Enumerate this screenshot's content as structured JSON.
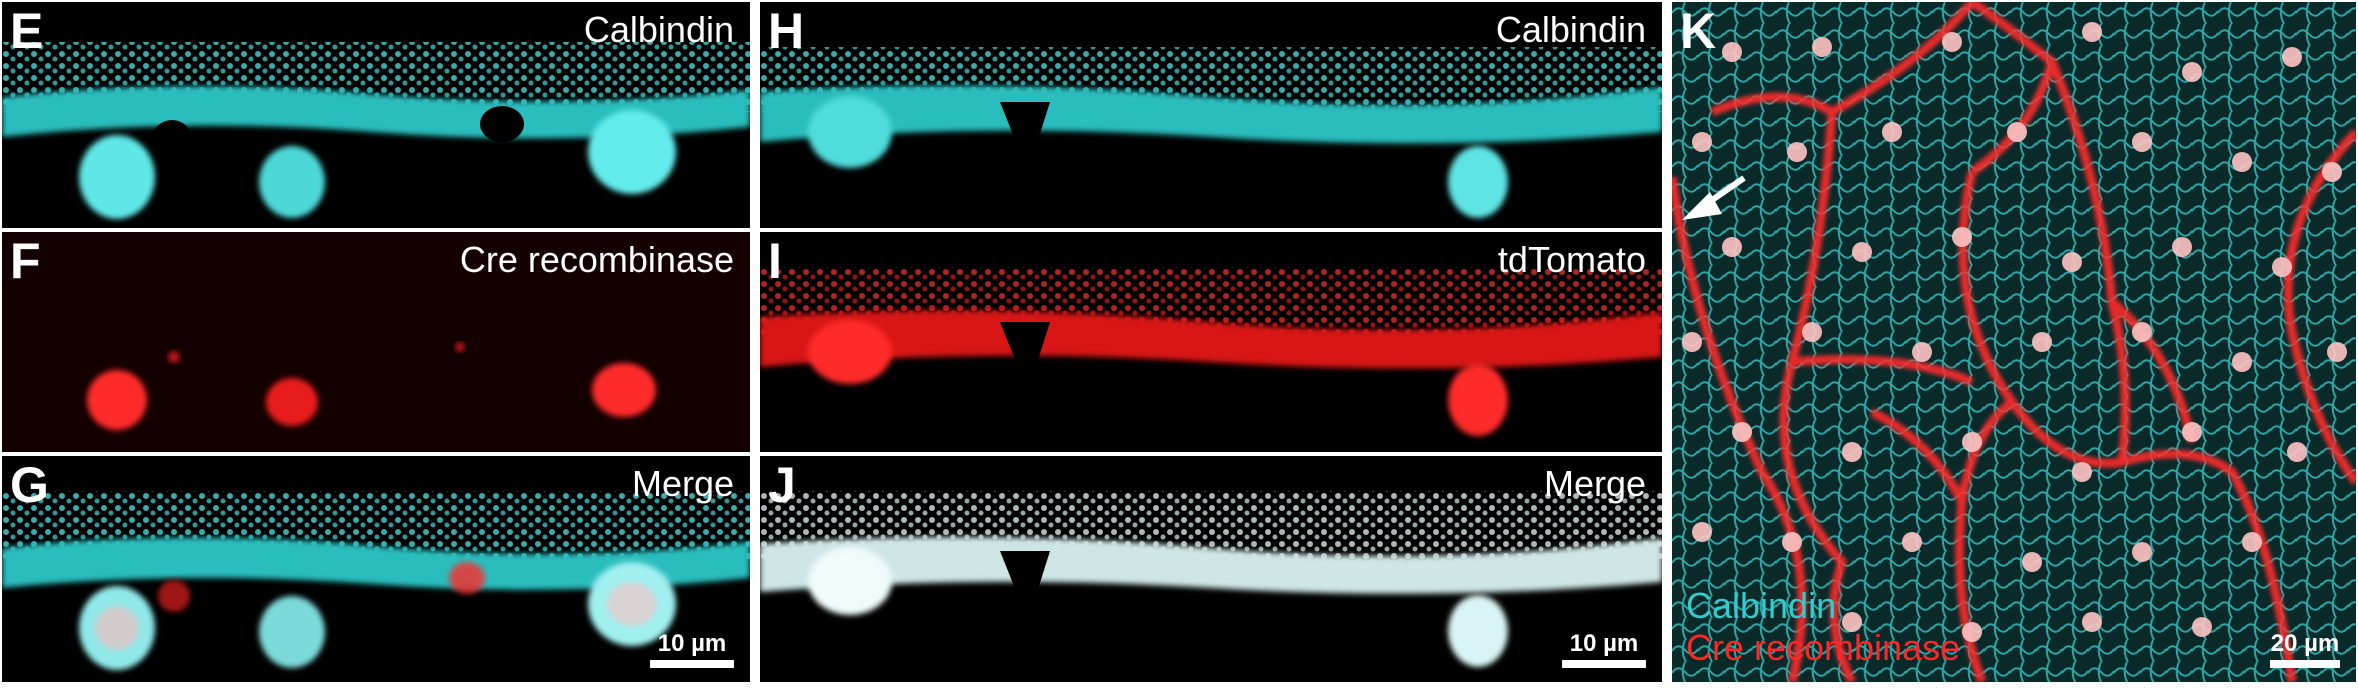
{
  "colors": {
    "calbindin": "#33d6d6",
    "cre": "#ff2626",
    "merge": "#e6f6f6",
    "background": "#000000"
  },
  "panels": {
    "E": {
      "letter": "E",
      "label": "Calbindin"
    },
    "F": {
      "letter": "F",
      "label": "Cre recombinase"
    },
    "G": {
      "letter": "G",
      "label": "Merge",
      "scale": "10 µm"
    },
    "H": {
      "letter": "H",
      "label": "Calbindin"
    },
    "I": {
      "letter": "I",
      "label": "tdTomato"
    },
    "J": {
      "letter": "J",
      "label": "Merge",
      "scale": "10 µm"
    },
    "K": {
      "letter": "K",
      "legend_calbindin": "Calbindin",
      "legend_cre": "Cre recombinase",
      "scale": "20 µm"
    }
  }
}
